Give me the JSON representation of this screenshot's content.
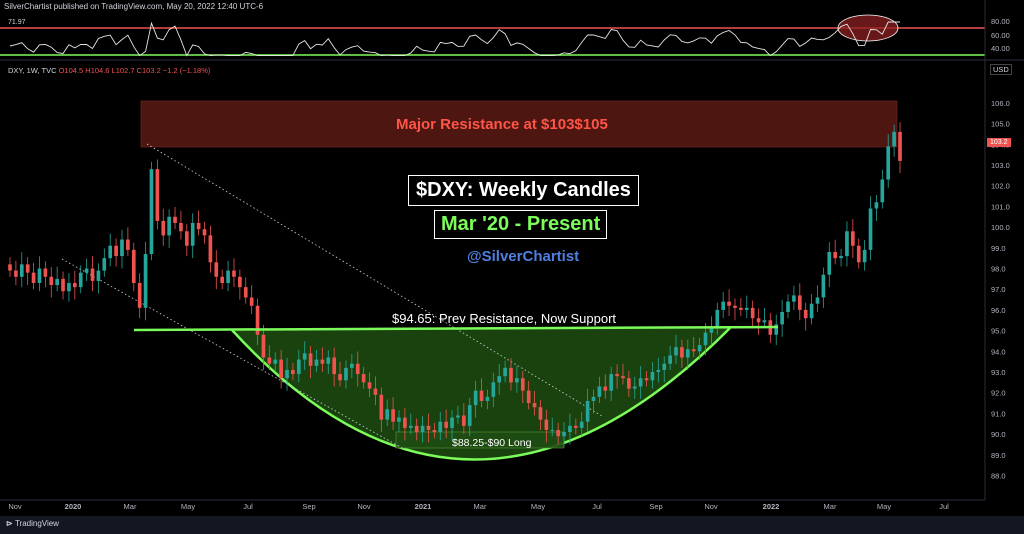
{
  "header": {
    "text": "SilverChartist published on TradingView.com, May 20, 2022 12:40 UTC-6"
  },
  "rsi": {
    "value_label": "71.97",
    "ticks": [
      "80.00",
      "60.00",
      "40.00"
    ]
  },
  "legend": {
    "symbol": "DXY, 1W, TVC",
    "ohlc": "O104.5 H104.6 L102.7 C103.2 −1.2 (−1.18%)"
  },
  "currency": "USD",
  "price_tag": "103.2",
  "annotations": {
    "title": "$DXY: Weekly Candles",
    "subtitle": "Mar '20 - Present",
    "handle": "@SilverChartist",
    "resistance": "Major Resistance at $103$105",
    "support": "$94.65: Prev Resistance, Now Support",
    "long_zone": "$88.25-$90 Long"
  },
  "footer": {
    "brand": "TradingView"
  },
  "colors": {
    "up": "#26a69a",
    "down": "#ef5350",
    "accent_green": "#7CFC5A",
    "resistance_fill": "#5a1a14"
  },
  "chart_data": {
    "type": "candlestick",
    "title": "$DXY: Weekly Candles",
    "y_ticks": [
      "106.0",
      "105.0",
      "104.0",
      "103.0",
      "102.0",
      "101.0",
      "100.0",
      "99.0",
      "98.0",
      "97.0",
      "96.0",
      "95.0",
      "94.0",
      "93.0",
      "92.0",
      "91.0",
      "90.0",
      "89.0",
      "88.0"
    ],
    "ylim": [
      87.3,
      107.3
    ],
    "x_ticks": [
      "Nov",
      "2020",
      "Mar",
      "May",
      "Jul",
      "Sep",
      "Nov",
      "2021",
      "Mar",
      "May",
      "Jul",
      "Sep",
      "Nov",
      "2022",
      "Mar",
      "May",
      "Jul"
    ],
    "resistance_zone": [
      103,
      105
    ],
    "support_level": 94.65,
    "long_zone": [
      88.25,
      90
    ],
    "closes": [
      97.9,
      97.6,
      98.2,
      97.8,
      97.3,
      98.0,
      97.6,
      97.2,
      97.5,
      96.9,
      97.3,
      97.1,
      97.8,
      98.0,
      97.4,
      97.9,
      98.5,
      99.1,
      98.6,
      99.4,
      98.9,
      97.3,
      96.1,
      98.7,
      102.8,
      100.3,
      99.6,
      100.5,
      100.2,
      99.8,
      99.1,
      100.2,
      99.9,
      99.6,
      98.3,
      97.6,
      97.3,
      97.9,
      97.6,
      97.1,
      96.6,
      96.2,
      94.8,
      93.7,
      93.4,
      93.6,
      92.7,
      93.1,
      92.9,
      93.6,
      93.9,
      93.3,
      93.6,
      93.4,
      93.7,
      92.9,
      92.6,
      93.2,
      93.4,
      92.9,
      92.5,
      92.2,
      91.9,
      90.7,
      91.2,
      90.6,
      90.8,
      90.3,
      90.4,
      90.1,
      90.4,
      90.2,
      90.1,
      90.6,
      90.3,
      90.8,
      90.9,
      90.4,
      91.4,
      92.1,
      91.6,
      91.8,
      92.5,
      92.8,
      93.2,
      92.5,
      92.7,
      92.1,
      91.5,
      91.3,
      90.7,
      90.2,
      90.2,
      89.9,
      90.1,
      90.4,
      90.3,
      90.6,
      91.6,
      91.8,
      92.3,
      92.1,
      92.9,
      92.8,
      92.7,
      92.2,
      92.3,
      92.7,
      92.6,
      93.0,
      93.1,
      93.4,
      93.8,
      94.2,
      93.7,
      94.1,
      94.0,
      94.3,
      94.9,
      95.1,
      96.0,
      96.4,
      96.2,
      96.1,
      96.0,
      96.1,
      95.6,
      95.4,
      95.5,
      94.8,
      95.3,
      95.9,
      96.4,
      96.7,
      96.0,
      95.6,
      96.3,
      96.6,
      97.7,
      98.8,
      98.5,
      98.6,
      99.8,
      99.1,
      98.3,
      98.9,
      100.9,
      101.2,
      102.3,
      103.9,
      104.6,
      103.2
    ]
  }
}
